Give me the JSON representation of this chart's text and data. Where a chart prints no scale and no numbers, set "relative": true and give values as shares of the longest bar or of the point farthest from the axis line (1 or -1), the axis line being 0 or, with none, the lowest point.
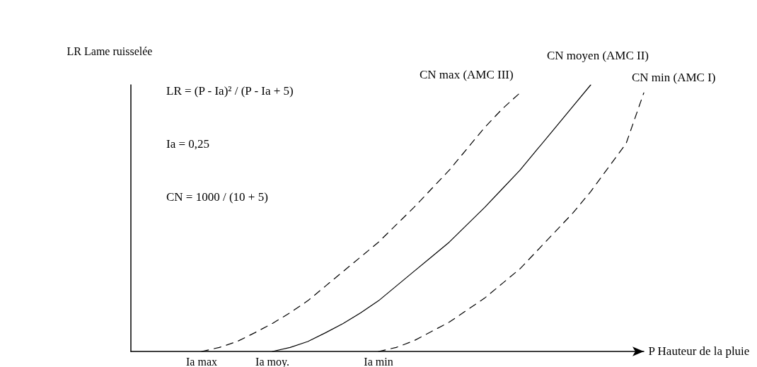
{
  "chart_data": {
    "type": "line",
    "relative": true,
    "ylabel": "LR Lame ruisselée",
    "xlabel": "P Hauteur de la pluie",
    "categories": [
      null,
      null,
      null,
      null,
      "Ia max",
      null,
      null,
      null,
      "Ia moy.",
      null,
      null,
      null,
      null,
      null,
      "Ia min",
      null,
      null,
      null,
      null,
      null,
      null,
      null,
      null,
      null,
      null,
      null,
      null,
      null,
      null,
      null
    ],
    "series": [
      {
        "name": "CN max (AMC III)",
        "color": "#000000",
        "line_style": "dashed",
        "values": [
          null,
          null,
          null,
          null,
          0,
          0.015,
          0.037,
          0.07,
          0.105,
          0.145,
          0.19,
          0.245,
          0.3,
          0.355,
          0.41,
          0.475,
          0.54,
          0.61,
          0.68,
          0.76,
          0.84,
          0.91,
          0.97,
          null,
          null,
          null,
          null,
          null,
          null,
          null
        ]
      },
      {
        "name": "CN moyen (AMC II)",
        "color": "#000000",
        "line_style": "solid",
        "values": [
          null,
          null,
          null,
          null,
          null,
          null,
          null,
          null,
          0,
          0.015,
          0.037,
          0.07,
          0.105,
          0.145,
          0.19,
          0.245,
          0.3,
          0.355,
          0.41,
          0.475,
          0.54,
          0.61,
          0.68,
          0.76,
          0.84,
          0.92,
          1,
          null,
          null,
          null
        ]
      },
      {
        "name": "CN min (AMC I)",
        "color": "#000000",
        "line_style": "dashed",
        "values": [
          null,
          null,
          null,
          null,
          null,
          null,
          null,
          null,
          null,
          null,
          null,
          null,
          null,
          null,
          0,
          0.015,
          0.04,
          0.075,
          0.11,
          0.155,
          0.2,
          0.255,
          0.31,
          0.38,
          0.45,
          0.52,
          0.6,
          0.69,
          0.78,
          0.97
        ]
      }
    ],
    "annotations": [
      "LR = (P - Ia)² / (P - Ia + 5)",
      "Ia = 0,25",
      "CN = 1000 / (10 + 5)"
    ],
    "legend": false,
    "grid": false,
    "marker": "none"
  }
}
